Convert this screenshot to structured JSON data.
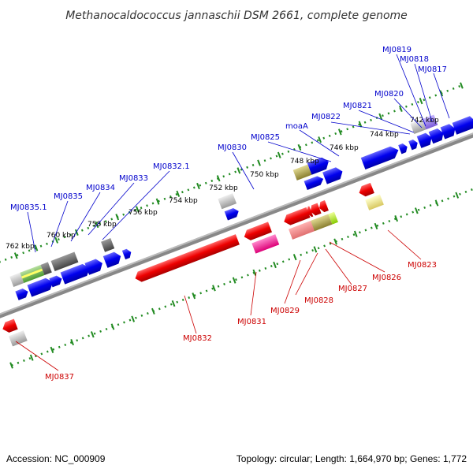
{
  "title": "Methanocaldococcus jannaschii DSM 2661, complete genome",
  "footer": {
    "accession": "Accession: NC_000909",
    "summary": "Topology: circular; Length: 1,664,970 bp; Genes: 1,772"
  },
  "kbp_labels": [
    "742 kbp",
    "744 kbp",
    "746 kbp",
    "748 kbp",
    "750 kbp",
    "752 kbp",
    "754 kbp",
    "756 kbp",
    "758 kbp",
    "760 kbp",
    "762 kbp"
  ],
  "top_gene_labels": [
    "MJ0819",
    "MJ0818",
    "MJ0817",
    "MJ0820",
    "MJ0821",
    "MJ0822",
    "moaA",
    "MJ0825",
    "MJ0830",
    "MJ0832.1",
    "MJ0833",
    "MJ0834",
    "MJ0835",
    "MJ0835.1"
  ],
  "bottom_gene_labels": [
    "MJ0823",
    "MJ0826",
    "MJ0827",
    "MJ0828",
    "MJ0829",
    "MJ0831",
    "MJ0832",
    "MJ0837"
  ],
  "colors": {
    "forward_gene": "#0000ee",
    "reverse_gene": "#ee0000",
    "label_forward": "#0000cc",
    "label_reverse": "#cc0000",
    "backbone": "#808080",
    "tick": "#228b22"
  }
}
